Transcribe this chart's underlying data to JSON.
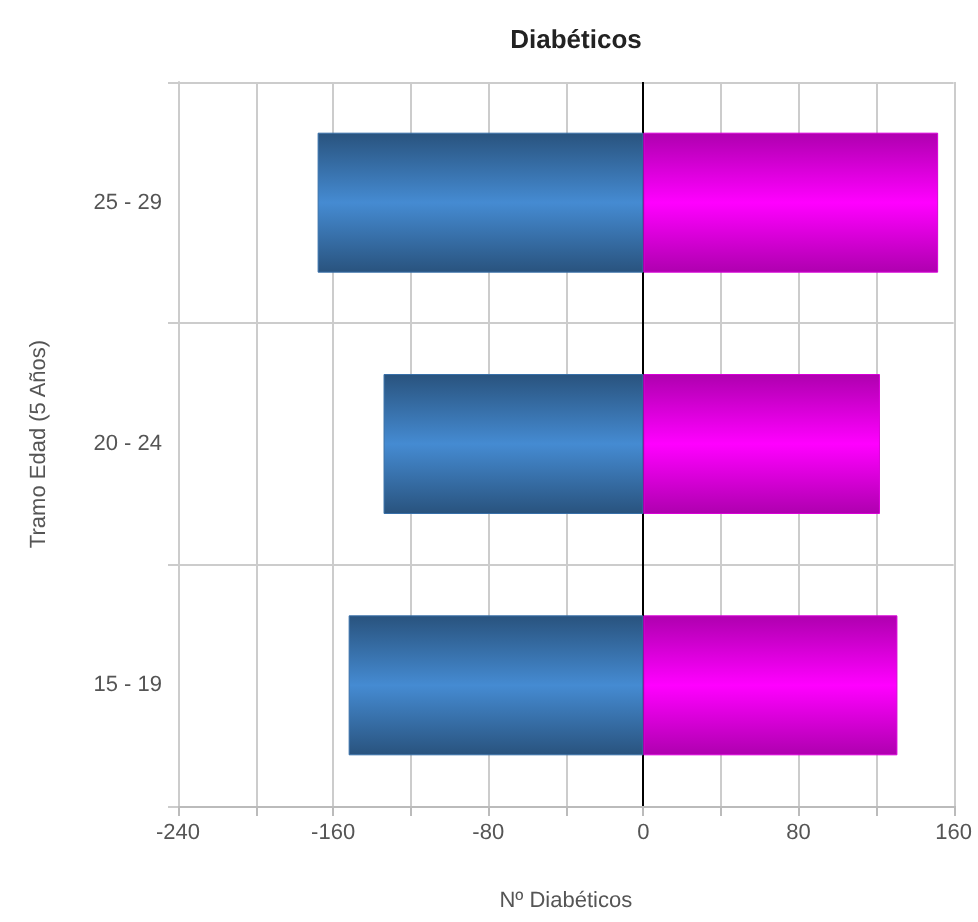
{
  "chart_data": {
    "type": "bar",
    "orientation": "horizontal",
    "stacked": true,
    "title": "Diabéticos",
    "xlabel": "Nº Diabéticos",
    "ylabel": "Tramo Edad (5 Años)",
    "categories": [
      "25 - 29",
      "20 - 24",
      "15 - 19"
    ],
    "series": [
      {
        "color": "#376fa8",
        "values": [
          -168,
          -134,
          -152
        ]
      },
      {
        "color": "#d700d7",
        "values": [
          152,
          122,
          131
        ]
      }
    ],
    "xlim": [
      -240,
      160
    ],
    "xticks": [
      -240,
      {
        "value": -200,
        "label": null
      },
      -160,
      {
        "value": -120,
        "label": null
      },
      -80,
      {
        "value": -40,
        "label": null
      },
      0,
      {
        "value": 40,
        "label": null
      },
      80,
      {
        "value": 120,
        "label": null
      },
      160
    ],
    "grid": true
  }
}
